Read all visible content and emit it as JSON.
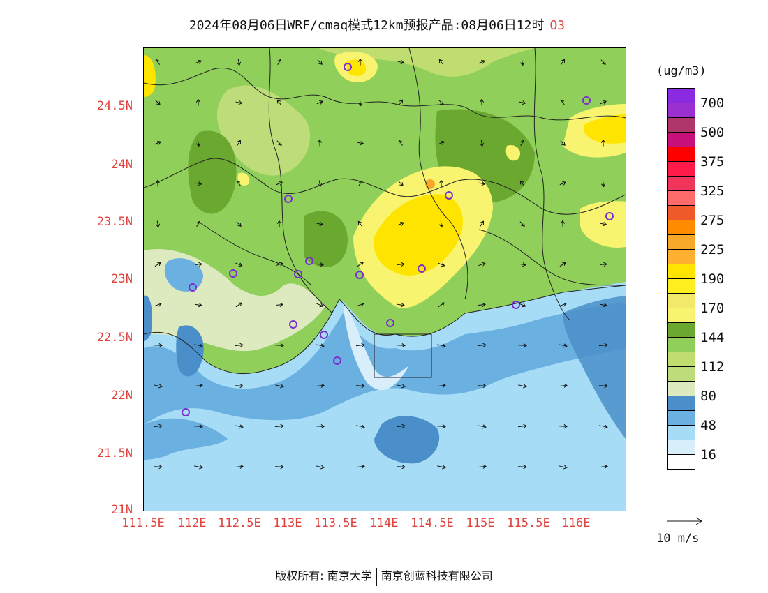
{
  "header": {
    "title": "2024年08月06日WRF/cmaq模式12km预报产品:08月06日12时",
    "species": "O3"
  },
  "map": {
    "lat_labels": [
      "24.5N",
      "24N",
      "23.5N",
      "23N",
      "22.5N",
      "22N",
      "21.5N",
      "21N"
    ],
    "lon_labels": [
      "111.5E",
      "112E",
      "112.5E",
      "113E",
      "113.5E",
      "114E",
      "114.5E",
      "115E",
      "115.5E",
      "116E"
    ],
    "extent": {
      "lon": [
        111.5,
        116.6
      ],
      "lat": [
        21.0,
        24.97
      ]
    },
    "colors": {
      "label": "#e0423e",
      "land_base": "#8fcf5a",
      "sea_base": "#a6dcf5",
      "coastal_band": "#6ab0e0",
      "open_sea_low": "#4a8fc9",
      "hotspot_mid": "#f2e96a",
      "hotspot_high": "#f7e000",
      "station_marker": "#7b2fd0"
    }
  },
  "legend": {
    "units": "(ug/m3)",
    "bins": [
      "#8a2be2",
      "#9b30d0",
      "#b0356a",
      "#c8107a",
      "#ff0000",
      "#ff1a4a",
      "#f0345a",
      "#ff6b6b",
      "#f05a2a",
      "#ff8c00",
      "#f8a828",
      "#ffb030",
      "#ffe400",
      "#ffee20",
      "#f2e96a",
      "#f8f470",
      "#6aa830",
      "#8fcf5a",
      "#c0dd70",
      "#bedd7a",
      "#dde9bf",
      "#4a8fc9",
      "#6ab0e0",
      "#a6dcf5",
      "#d8eefa",
      "#ffffff"
    ],
    "labels": [
      "700",
      "500",
      "375",
      "325",
      "275",
      "225",
      "190",
      "170",
      "144",
      "112",
      "80",
      "48",
      "16"
    ]
  },
  "reference_vector": {
    "label": "10  m/s"
  },
  "footer": {
    "left": "版权所有: 南京大学",
    "right": "南京创蓝科技有限公司"
  }
}
